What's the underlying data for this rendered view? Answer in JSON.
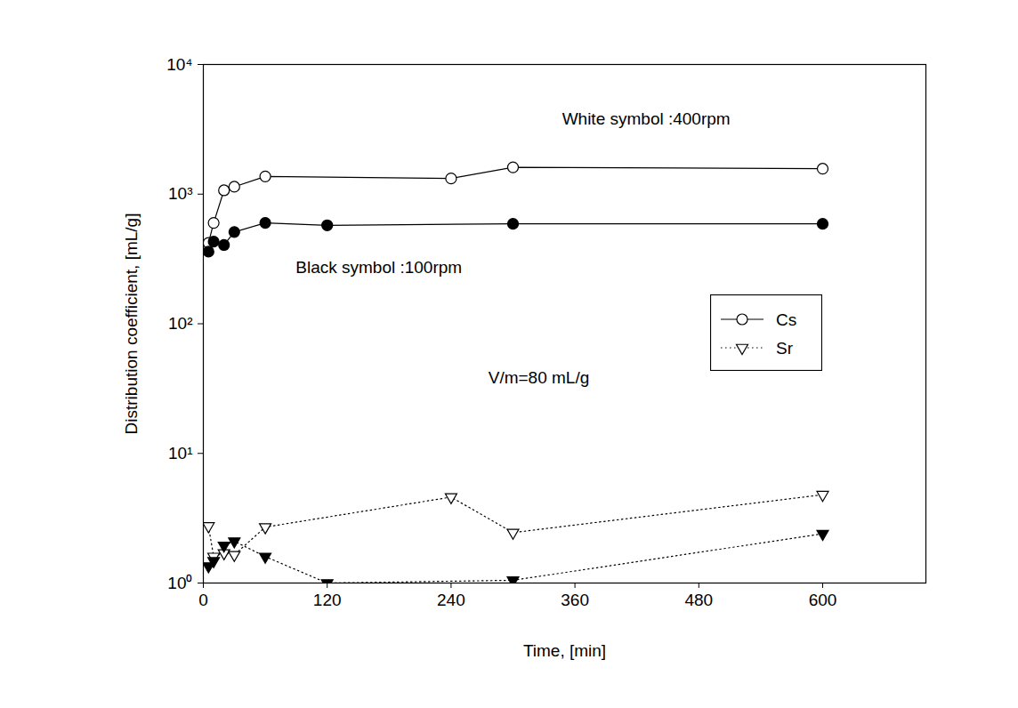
{
  "chart_data": {
    "type": "line",
    "x_label": "Time, [min]",
    "y_label": "Distribution coefficient, [mL/g]",
    "log": "y",
    "grid": false,
    "legend": "right",
    "xlim": [
      0,
      700
    ],
    "xticks": [
      0,
      120,
      240,
      360,
      480,
      600
    ],
    "ylim": [
      1,
      10000
    ],
    "yticks": [
      {
        "value": 1,
        "label": "10⁰"
      },
      {
        "value": 10,
        "label": "10¹"
      },
      {
        "value": 100,
        "label": "10²"
      },
      {
        "value": 1000,
        "label": "10³"
      },
      {
        "value": 10000,
        "label": "10⁴"
      }
    ],
    "annotations": [
      {
        "text": "White symbol :400rpm",
        "x": 429,
        "y": 3800
      },
      {
        "text": "Black symbol :100rpm",
        "x": 170,
        "y": 270
      },
      {
        "text": "V/m=80 mL/g",
        "x": 325,
        "y": 38
      }
    ],
    "series": [
      {
        "name": "Cs",
        "color": "#ffffff",
        "marker": "circle",
        "line_style": "solid",
        "x": [
          5,
          10,
          20,
          30,
          60,
          240,
          300,
          600
        ],
        "values": [
          420,
          600,
          1070,
          1140,
          1370,
          1320,
          1610,
          1570
        ]
      },
      {
        "name": "Cs",
        "color": "#000000",
        "marker": "circle",
        "line_style": "solid",
        "x": [
          5,
          10,
          20,
          30,
          60,
          120,
          300,
          600
        ],
        "values": [
          360,
          430,
          405,
          510,
          600,
          575,
          590,
          590
        ]
      },
      {
        "name": "Sr",
        "color": "#ffffff",
        "marker": "triangle-down",
        "line_style": "dotted",
        "x": [
          5,
          10,
          20,
          30,
          60,
          240,
          300,
          600
        ],
        "values": [
          2.75,
          1.6,
          1.7,
          1.65,
          2.7,
          4.6,
          2.45,
          4.8
        ]
      },
      {
        "name": "Sr",
        "color": "#000000",
        "marker": "triangle-down",
        "line_style": "dotted",
        "x": [
          5,
          10,
          20,
          30,
          60,
          120,
          300,
          600
        ],
        "values": [
          1.35,
          1.48,
          1.95,
          2.1,
          1.6,
          1.0,
          1.05,
          2.4
        ]
      }
    ]
  }
}
